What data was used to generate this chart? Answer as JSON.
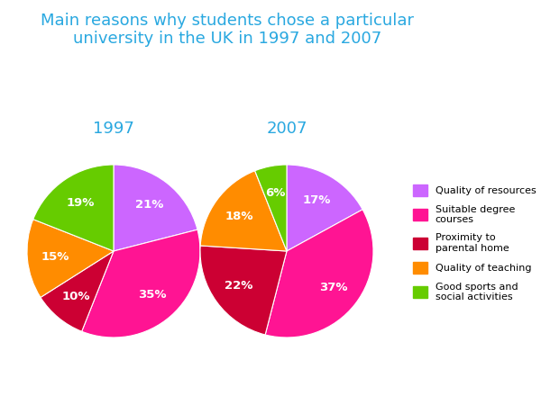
{
  "title": "Main reasons why students chose a particular\nuniversity in the UK in 1997 and 2007",
  "title_color": "#29A8E0",
  "title_fontsize": 13,
  "subtitle_1997": "1997",
  "subtitle_2007": "2007",
  "subtitle_color": "#29A8E0",
  "subtitle_fontsize": 13,
  "background_color": "#ffffff",
  "legend_labels": [
    "Quality of resources",
    "Suitable degree\ncourses",
    "Proximity to\nparental home",
    "Quality of teaching",
    "Good sports and\nsocial activities"
  ],
  "colors": [
    "#CC66FF",
    "#FF1493",
    "#CC0033",
    "#FF8C00",
    "#66CC00"
  ],
  "pie1997": [
    21,
    35,
    10,
    15,
    19
  ],
  "pie2007": [
    17,
    37,
    22,
    18,
    6
  ],
  "startangle1997": 90,
  "startangle2007": 96,
  "pct_color": "white",
  "pct_fontsize": 9.5
}
